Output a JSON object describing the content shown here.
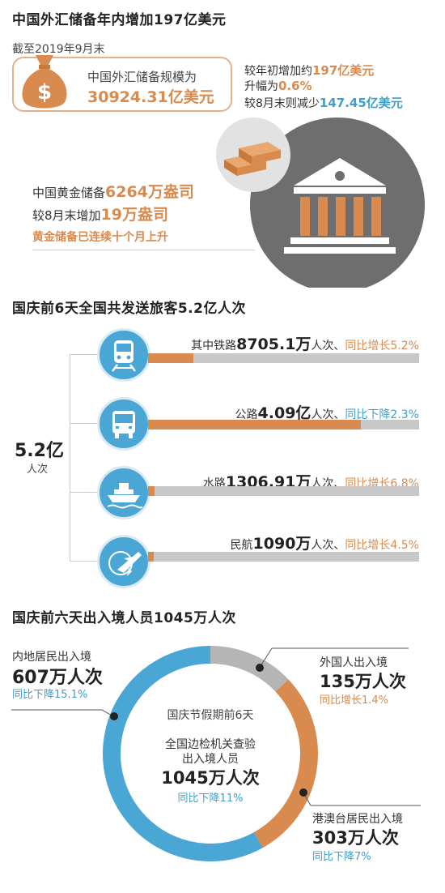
{
  "section1": {
    "title": "中国外汇储备年内增加197亿美元",
    "date": "截至2019年9月末",
    "reserve_label": "中国外汇储备规模为",
    "reserve_value": "30924.31亿美元",
    "line1_prefix": "较年初增加约",
    "line1_value": "197亿美元",
    "line2_prefix": "升幅为",
    "line2_value": "0.6%",
    "line3_prefix": "较8月末则减少",
    "line3_value": "147.45亿美元",
    "gold_prefix": "中国黄金储备",
    "gold_value": "6264万盎司",
    "gold_change_prefix": "较8月末增加",
    "gold_change_value": "19万盎司",
    "gold_note": "黄金储备已连续十个月上升",
    "bag_symbol": "$"
  },
  "section2": {
    "title": "国庆前6天全国共发送旅客5.2亿人次",
    "total_value": "5.2亿",
    "total_unit": "人次",
    "items": [
      {
        "prefix": "其中铁路",
        "value": "8705.1万",
        "unit": "人次、",
        "change": "同比增长5.2%",
        "change_dir": "up",
        "icon": "train-icon"
      },
      {
        "prefix": "公路",
        "value": "4.09亿",
        "unit": "人次、",
        "change": "同比下降2.3%",
        "change_dir": "down",
        "icon": "bus-icon"
      },
      {
        "prefix": "水路",
        "value": "1306.91万",
        "unit": "人次、",
        "change": "同比增长6.8%",
        "change_dir": "up",
        "icon": "ship-icon"
      },
      {
        "prefix": "民航",
        "value": "1090万",
        "unit": "人次、",
        "change": "同比增长4.5%",
        "change_dir": "up",
        "icon": "airplane-icon"
      }
    ]
  },
  "section3": {
    "title": "国庆前六天出入境人员1045万人次",
    "center_title": "国庆节假期前6天",
    "center_line1": "全国边检机关查验",
    "center_line2": "出入境人员",
    "center_value": "1045万人次",
    "center_change": "同比下降11%",
    "mainland": {
      "label": "内地居民出入境",
      "value": "607万人次",
      "change": "同比下降15.1%"
    },
    "foreigners": {
      "label": "外国人出入境",
      "value": "135万人次",
      "change": "同比增长1.4%"
    },
    "hmt": {
      "label": "港澳台居民出入境",
      "value": "303万人次",
      "change": "同比下降7%"
    }
  },
  "chart_data": [
    {
      "type": "bar",
      "title": "国庆前6天全国共发送旅客5.2亿人次",
      "categories": [
        "铁路",
        "公路",
        "水路",
        "民航"
      ],
      "values": [
        8705.1,
        40900,
        1306.91,
        1090
      ],
      "unit": "万人次",
      "total": 52000,
      "changes": [
        "同比增长5.2%",
        "同比下降2.3%",
        "同比增长6.8%",
        "同比增长4.5%"
      ]
    },
    {
      "type": "pie",
      "title": "国庆前六天出入境人员1045万人次",
      "categories": [
        "内地居民出入境",
        "外国人出入境",
        "港澳台居民出入境"
      ],
      "values": [
        607,
        135,
        303
      ],
      "unit": "万人次",
      "colors": [
        "#4aa6d4",
        "#b5b5b5",
        "#d98a4e"
      ]
    }
  ],
  "colors": {
    "orange": "#d98a4e",
    "blue": "#3d9fcb",
    "icon_blue": "#4aa6d4",
    "bar_grey": "#c8c8c8",
    "ring_grey": "#b5b5b5",
    "dark_grey": "#555555"
  }
}
